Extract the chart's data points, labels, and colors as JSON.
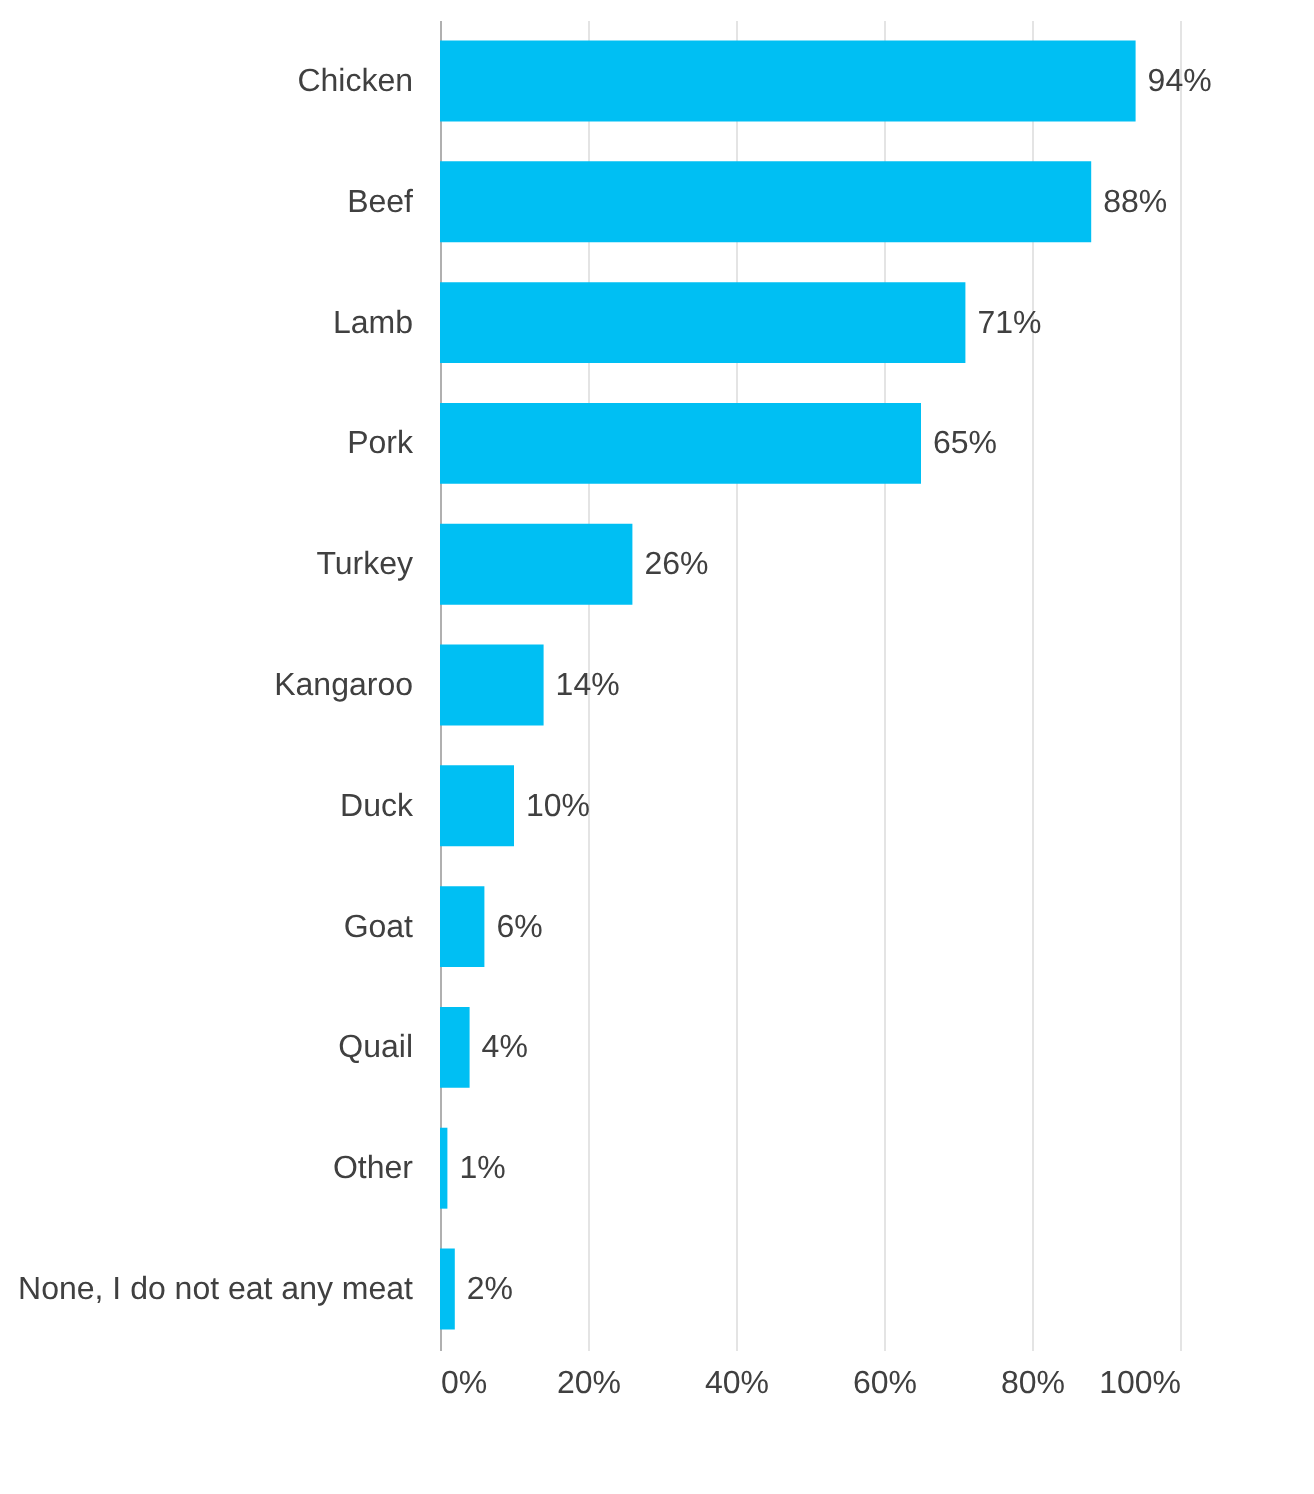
{
  "chart_data": {
    "type": "bar",
    "orientation": "horizontal",
    "categories": [
      "Chicken",
      "Beef",
      "Lamb",
      "Pork",
      "Turkey",
      "Kangaroo",
      "Duck",
      "Goat",
      "Quail",
      "Other",
      "None, I do not eat any meat"
    ],
    "values": [
      94,
      88,
      71,
      65,
      26,
      14,
      10,
      6,
      4,
      1,
      2
    ],
    "value_labels": [
      "94%",
      "88%",
      "71%",
      "65%",
      "26%",
      "14%",
      "10%",
      "6%",
      "4%",
      "1%",
      "2%"
    ],
    "color": "#00bff3",
    "xlim": [
      0,
      100
    ],
    "xticks": [
      {
        "value": 0,
        "label": "0%"
      },
      {
        "value": 20,
        "label": "20%"
      },
      {
        "value": 40,
        "label": "40%"
      },
      {
        "value": 60,
        "label": "60%"
      },
      {
        "value": 80,
        "label": "80%"
      },
      {
        "value": 100,
        "label": "100%"
      }
    ],
    "grid": "x"
  }
}
